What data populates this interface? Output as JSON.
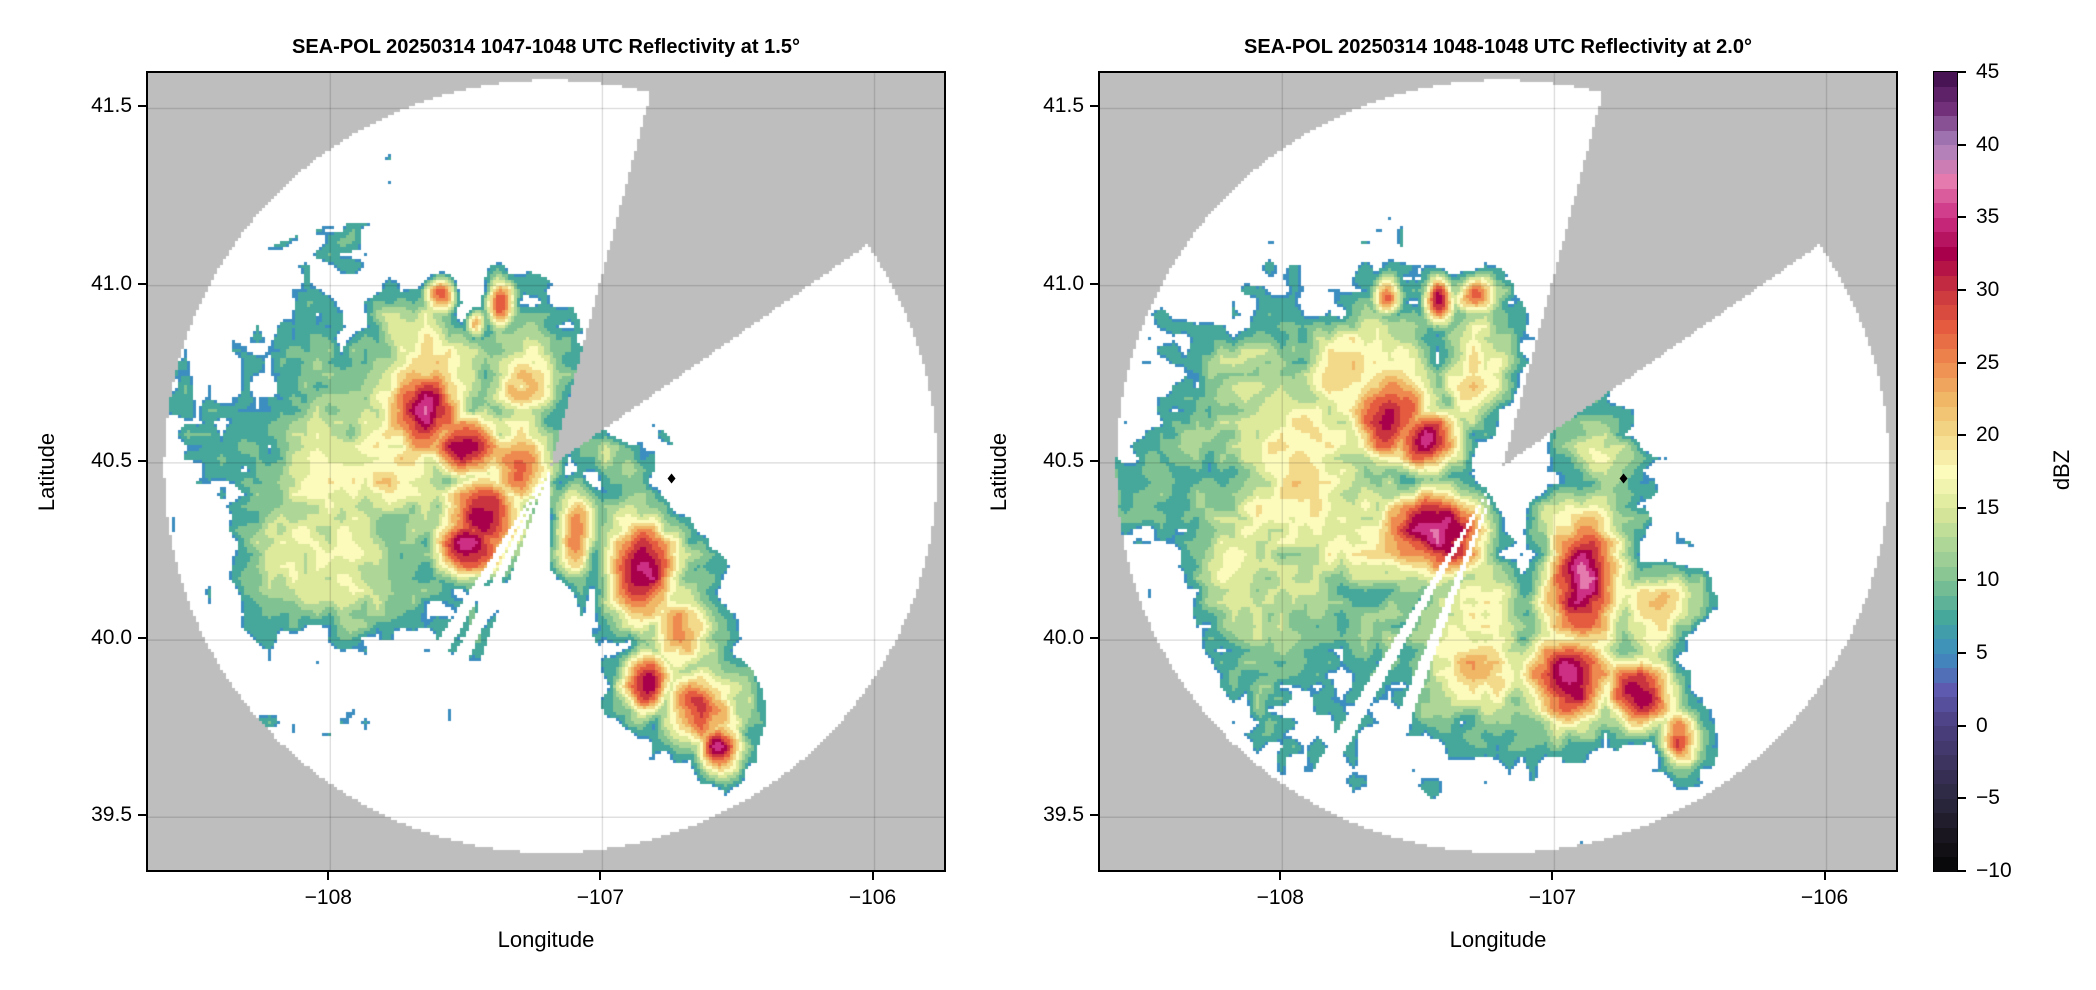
{
  "chart_data": [
    {
      "type": "heatmap",
      "title": "SEA-POL 20250314 1047-1048 UTC Reflectivity at 1.5°",
      "xlabel": "Longitude",
      "ylabel": "Latitude",
      "xlim": [
        -108.67,
        -105.73
      ],
      "ylim": [
        39.34,
        41.6
      ],
      "xticks": [
        -108,
        -107,
        -106
      ],
      "xtick_labels": [
        "−108",
        "−107",
        "−106"
      ],
      "yticks": [
        39.5,
        40.0,
        40.5,
        41.0,
        41.5
      ],
      "ytick_labels": [
        "39.5",
        "40.0",
        "40.5",
        "41.0",
        "41.5"
      ],
      "grid": true,
      "radar_location": {
        "lon": -107.19,
        "lat": 40.49
      },
      "range_km": 121,
      "blocked_azimuth_deg": [
        15,
        55
      ],
      "no_echo_azimuth_deg": [
        [
          180,
          200
        ],
        [
          203,
          207
        ],
        [
          209,
          213
        ]
      ],
      "marker": {
        "lon": -106.746,
        "lat": 40.456,
        "shape": "diamond",
        "color": "#000000"
      },
      "echo_cells": [
        {
          "lon": -107.85,
          "lat": 40.45,
          "spread_lon": 0.35,
          "spread_lat": 0.3,
          "peak_dbz": 14
        },
        {
          "lon": -108.1,
          "lat": 40.35,
          "spread_lon": 0.2,
          "spread_lat": 0.25,
          "peak_dbz": 12
        },
        {
          "lon": -107.7,
          "lat": 40.75,
          "spread_lon": 0.2,
          "spread_lat": 0.15,
          "peak_dbz": 15
        },
        {
          "lon": -107.65,
          "lat": 40.65,
          "spread_lon": 0.12,
          "spread_lat": 0.1,
          "peak_dbz": 29
        },
        {
          "lon": -107.5,
          "lat": 40.55,
          "spread_lon": 0.1,
          "spread_lat": 0.07,
          "peak_dbz": 35
        },
        {
          "lon": -107.45,
          "lat": 40.36,
          "spread_lon": 0.12,
          "spread_lat": 0.1,
          "peak_dbz": 30
        },
        {
          "lon": -107.5,
          "lat": 40.27,
          "spread_lon": 0.1,
          "spread_lat": 0.07,
          "peak_dbz": 32
        },
        {
          "lon": -107.33,
          "lat": 40.5,
          "spread_lon": 0.1,
          "spread_lat": 0.1,
          "peak_dbz": 24
        },
        {
          "lon": -107.6,
          "lat": 40.98,
          "spread_lon": 0.04,
          "spread_lat": 0.04,
          "peak_dbz": 26
        },
        {
          "lon": -107.38,
          "lat": 40.95,
          "spread_lon": 0.04,
          "spread_lat": 0.05,
          "peak_dbz": 26
        },
        {
          "lon": -107.47,
          "lat": 40.9,
          "spread_lon": 0.03,
          "spread_lat": 0.03,
          "peak_dbz": 20
        },
        {
          "lon": -107.3,
          "lat": 40.75,
          "spread_lon": 0.1,
          "spread_lat": 0.12,
          "peak_dbz": 16
        },
        {
          "lon": -106.98,
          "lat": 40.52,
          "spread_lon": 0.1,
          "spread_lat": 0.05,
          "peak_dbz": 10
        },
        {
          "lon": -107.1,
          "lat": 40.3,
          "spread_lon": 0.05,
          "spread_lat": 0.1,
          "peak_dbz": 22
        },
        {
          "lon": -106.85,
          "lat": 40.2,
          "spread_lon": 0.1,
          "spread_lat": 0.12,
          "peak_dbz": 30
        },
        {
          "lon": -106.72,
          "lat": 40.05,
          "spread_lon": 0.1,
          "spread_lat": 0.1,
          "peak_dbz": 20
        },
        {
          "lon": -106.85,
          "lat": 39.88,
          "spread_lon": 0.07,
          "spread_lat": 0.07,
          "peak_dbz": 30
        },
        {
          "lon": -106.65,
          "lat": 39.8,
          "spread_lon": 0.1,
          "spread_lat": 0.08,
          "peak_dbz": 28
        },
        {
          "lon": -106.58,
          "lat": 39.7,
          "spread_lon": 0.06,
          "spread_lat": 0.06,
          "peak_dbz": 30
        }
      ]
    },
    {
      "type": "heatmap",
      "title": "SEA-POL 20250314 1048-1048 UTC Reflectivity at 2.0°",
      "xlabel": "Longitude",
      "ylabel": "Latitude",
      "xlim": [
        -108.67,
        -105.73
      ],
      "ylim": [
        39.34,
        41.6
      ],
      "xticks": [
        -108,
        -107,
        -106
      ],
      "xtick_labels": [
        "−108",
        "−107",
        "−106"
      ],
      "yticks": [
        39.5,
        40.0,
        40.5,
        41.0,
        41.5
      ],
      "ytick_labels": [
        "39.5",
        "40.0",
        "40.5",
        "41.0",
        "41.5"
      ],
      "grid": true,
      "radar_location": {
        "lon": -107.19,
        "lat": 40.49
      },
      "range_km": 121,
      "blocked_azimuth_deg": [
        15,
        55
      ],
      "no_echo_azimuth_deg": [
        [
          200,
          203
        ],
        [
          209,
          212
        ]
      ],
      "marker": {
        "lon": -106.746,
        "lat": 40.456,
        "shape": "diamond",
        "color": "#000000"
      },
      "echo_cells": [
        {
          "lon": -107.9,
          "lat": 40.4,
          "spread_lon": 0.35,
          "spread_lat": 0.35,
          "peak_dbz": 15
        },
        {
          "lon": -108.1,
          "lat": 40.3,
          "spread_lon": 0.2,
          "spread_lat": 0.3,
          "peak_dbz": 12
        },
        {
          "lon": -107.7,
          "lat": 40.75,
          "spread_lon": 0.2,
          "spread_lat": 0.15,
          "peak_dbz": 17
        },
        {
          "lon": -107.6,
          "lat": 40.65,
          "spread_lon": 0.12,
          "spread_lat": 0.12,
          "peak_dbz": 30
        },
        {
          "lon": -107.48,
          "lat": 40.57,
          "spread_lon": 0.1,
          "spread_lat": 0.07,
          "peak_dbz": 34
        },
        {
          "lon": -107.45,
          "lat": 40.3,
          "spread_lon": 0.15,
          "spread_lat": 0.1,
          "peak_dbz": 31
        },
        {
          "lon": -107.3,
          "lat": 40.0,
          "spread_lon": 0.15,
          "spread_lat": 0.2,
          "peak_dbz": 18
        },
        {
          "lon": -107.62,
          "lat": 40.97,
          "spread_lon": 0.04,
          "spread_lat": 0.04,
          "peak_dbz": 24
        },
        {
          "lon": -107.43,
          "lat": 40.96,
          "spread_lon": 0.04,
          "spread_lat": 0.05,
          "peak_dbz": 30
        },
        {
          "lon": -107.3,
          "lat": 40.98,
          "spread_lon": 0.06,
          "spread_lat": 0.04,
          "peak_dbz": 22
        },
        {
          "lon": -107.3,
          "lat": 40.75,
          "spread_lon": 0.1,
          "spread_lat": 0.12,
          "peak_dbz": 18
        },
        {
          "lon": -106.85,
          "lat": 40.55,
          "spread_lon": 0.12,
          "spread_lat": 0.08,
          "peak_dbz": 14
        },
        {
          "lon": -106.9,
          "lat": 40.15,
          "spread_lon": 0.12,
          "spread_lat": 0.15,
          "peak_dbz": 32
        },
        {
          "lon": -106.95,
          "lat": 39.9,
          "spread_lon": 0.12,
          "spread_lat": 0.1,
          "peak_dbz": 33
        },
        {
          "lon": -106.7,
          "lat": 39.85,
          "spread_lon": 0.1,
          "spread_lat": 0.08,
          "peak_dbz": 30
        },
        {
          "lon": -106.55,
          "lat": 39.72,
          "spread_lon": 0.06,
          "spread_lat": 0.06,
          "peak_dbz": 28
        },
        {
          "lon": -106.65,
          "lat": 40.08,
          "spread_lon": 0.1,
          "spread_lat": 0.1,
          "peak_dbz": 18
        }
      ]
    }
  ],
  "colorbar": {
    "label": "dBZ",
    "range": [
      -10,
      45
    ],
    "ticks": [
      -10,
      -5,
      0,
      5,
      10,
      15,
      20,
      25,
      30,
      35,
      40,
      45
    ],
    "tick_labels": [
      "−10",
      "−5",
      "0",
      "5",
      "10",
      "15",
      "20",
      "25",
      "30",
      "35",
      "40",
      "45"
    ],
    "stops": [
      [
        -10,
        "#050505"
      ],
      [
        -7.5,
        "#1a1620"
      ],
      [
        -5,
        "#2c2740"
      ],
      [
        -2.5,
        "#3d3560"
      ],
      [
        0,
        "#4b3f7e"
      ],
      [
        2.5,
        "#5d5ab0"
      ],
      [
        5,
        "#3d8ec0"
      ],
      [
        7.5,
        "#46a79b"
      ],
      [
        10,
        "#80c292"
      ],
      [
        12.5,
        "#aed697"
      ],
      [
        15,
        "#dde99b"
      ],
      [
        17.5,
        "#fcfbbc"
      ],
      [
        20,
        "#f3d98a"
      ],
      [
        22.5,
        "#efb766"
      ],
      [
        25,
        "#ee8a4f"
      ],
      [
        27.5,
        "#e45b3f"
      ],
      [
        30,
        "#c9343f"
      ],
      [
        32.5,
        "#a8004b"
      ],
      [
        35,
        "#cc2f83"
      ],
      [
        37.5,
        "#e47aae"
      ],
      [
        40,
        "#a983bc"
      ],
      [
        42.5,
        "#72307a"
      ],
      [
        45,
        "#3e0d4a"
      ]
    ]
  },
  "colors": {
    "outside_range": "#bebebe",
    "inside_range": "#ffffff",
    "grid": "#000000"
  }
}
